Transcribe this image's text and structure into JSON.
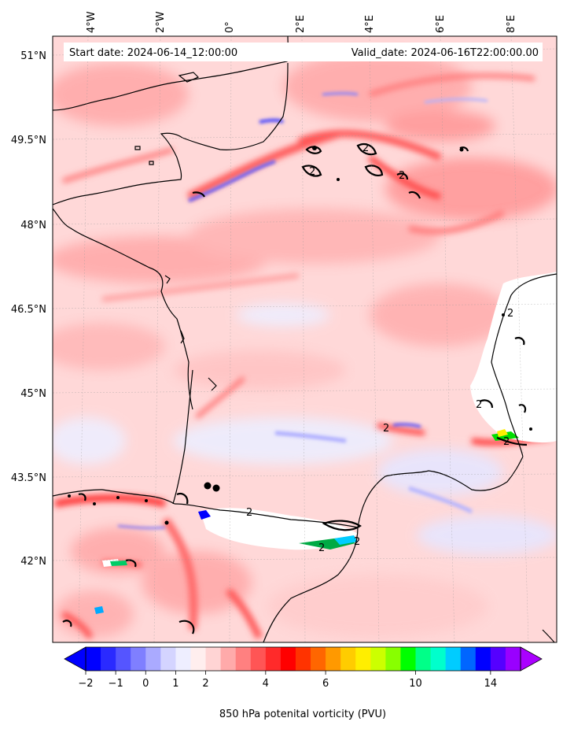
{
  "header": {
    "start_date": "Start date: 2024-06-14_12:00:00",
    "valid_date": "Valid_date: 2024-06-16T22:00:00.00"
  },
  "axes": {
    "longitude_labels": [
      "4°W",
      "2°W",
      "0°",
      "2°E",
      "4°E",
      "6°E",
      "8°E"
    ],
    "latitude_labels": [
      "51°N",
      "49.5°N",
      "48°N",
      "46.5°N",
      "45°N",
      "43.5°N",
      "42°N"
    ]
  },
  "map": {
    "contour_label": "2",
    "field_colors": {
      "background_positive": "#ffd6d6",
      "moderate_positive": "#ff8c8c",
      "strong_positive": "#ff2020",
      "weak_negative": "#e6e6ff",
      "negative": "#5a5aff",
      "masked": "#ffffff",
      "coastline": "#000000"
    }
  },
  "colorbar": {
    "tick_labels": [
      "−2",
      "−1",
      "0",
      "1",
      "2",
      "4",
      "6",
      "10",
      "14"
    ],
    "title": "850 hPa potenital vorticity (PVU)",
    "colors": [
      "#0000ff",
      "#2a2aff",
      "#5555ff",
      "#7f7fff",
      "#aaaaff",
      "#d4d4ff",
      "#eeeeff",
      "#ffeeee",
      "#ffd4d4",
      "#ffaaaa",
      "#ff8080",
      "#ff5555",
      "#ff2a2a",
      "#ff0000",
      "#ff3300",
      "#ff6600",
      "#ff9900",
      "#ffcc00",
      "#ffee00",
      "#ccff00",
      "#88ff00",
      "#00ff00",
      "#00ff88",
      "#00ffcc",
      "#00ccff",
      "#0066ff",
      "#0000ff",
      "#5500ff",
      "#9900ff"
    ],
    "extend_low": "#0000ff",
    "extend_high": "#aa00ff"
  }
}
